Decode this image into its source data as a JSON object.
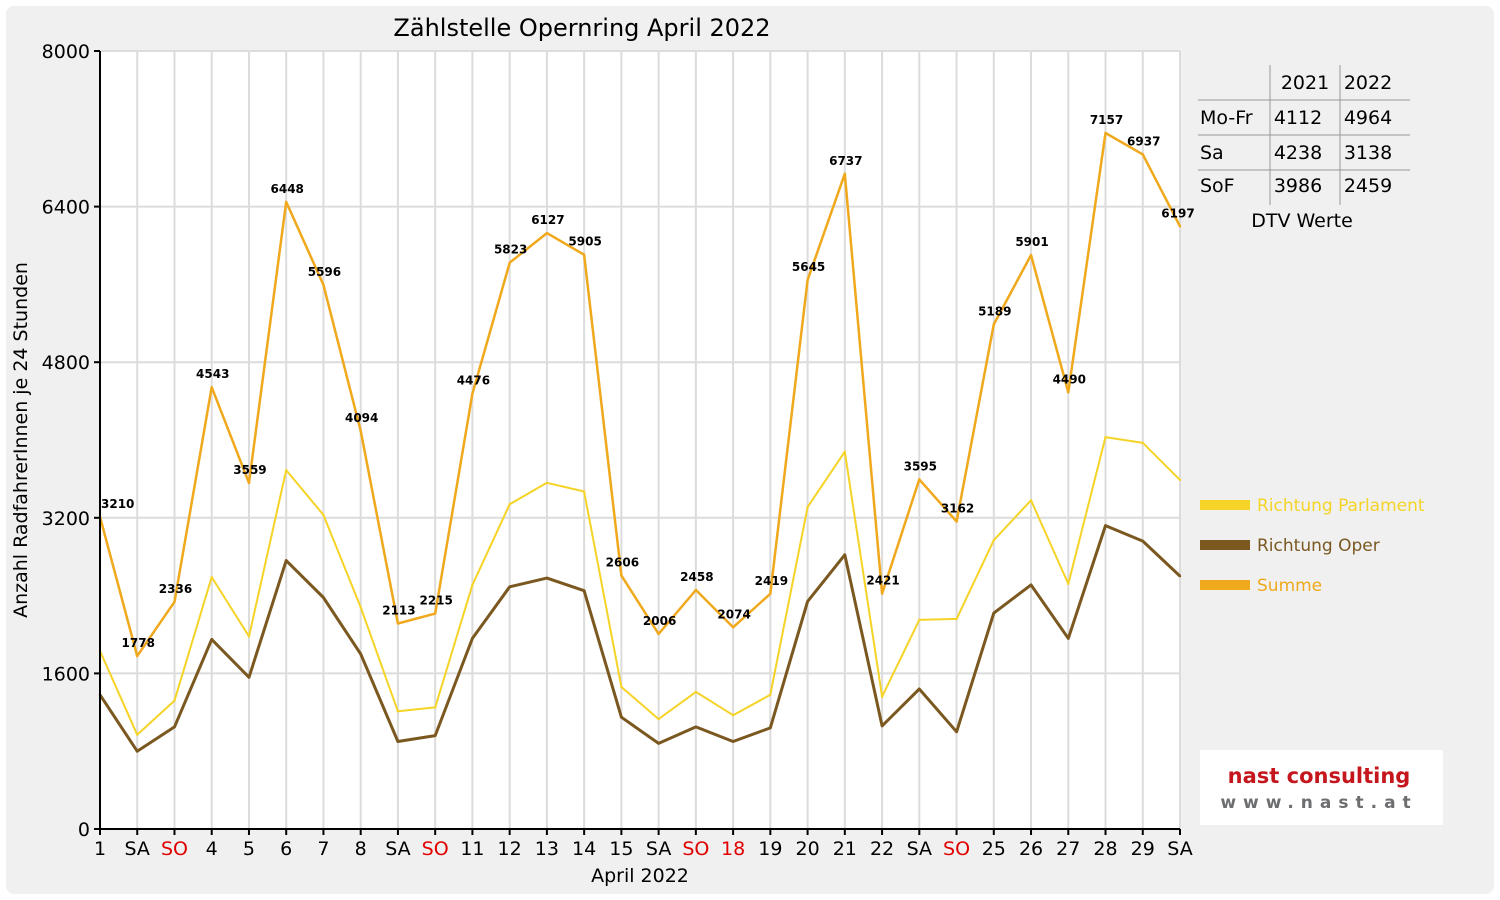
{
  "chart_data": {
    "type": "line",
    "title": "Zählstelle Opernring April 2022",
    "xlabel": "April 2022",
    "ylabel": "Anzahl RadfahrerInnen je 24 Stunden",
    "ylim": [
      0,
      8000
    ],
    "yticks": [
      "0",
      "1600",
      "3200",
      "4800",
      "6400",
      "8000"
    ],
    "grid": true,
    "legend_position": "right",
    "categories": [
      "1",
      "SA",
      "SO",
      "4",
      "5",
      "6",
      "7",
      "8",
      "SA",
      "SO",
      "11",
      "12",
      "13",
      "14",
      "15",
      "SA",
      "SO",
      "18",
      "19",
      "20",
      "21",
      "22",
      "SA",
      "SO",
      "25",
      "26",
      "27",
      "28",
      "29",
      "SA"
    ],
    "highlight_categories": [
      false,
      false,
      true,
      false,
      false,
      false,
      false,
      false,
      false,
      true,
      false,
      false,
      false,
      false,
      false,
      false,
      true,
      true,
      false,
      false,
      false,
      false,
      false,
      true,
      false,
      false,
      false,
      false,
      false,
      false
    ],
    "series": [
      {
        "name": "Richtung Parlament",
        "color": "#f5d327",
        "values": [
          1830,
          970,
          1320,
          2590,
          1980,
          3690,
          3230,
          2280,
          1210,
          1250,
          2510,
          3340,
          3560,
          3470,
          1460,
          1130,
          1410,
          1170,
          1380,
          3310,
          3880,
          1360,
          2150,
          2160,
          2970,
          3380,
          2520,
          4030,
          3970,
          3590
        ]
      },
      {
        "name": "Richtung Oper",
        "color": "#7a5820",
        "values": [
          1380,
          800,
          1050,
          1950,
          1560,
          2760,
          2380,
          1800,
          900,
          960,
          1960,
          2490,
          2580,
          2450,
          1150,
          880,
          1050,
          900,
          1040,
          2340,
          2820,
          1060,
          1440,
          1000,
          2220,
          2510,
          1960,
          3120,
          2960,
          2600
        ]
      },
      {
        "name": "Summe",
        "color": "#f0a81c",
        "values": [
          3210,
          1778,
          2336,
          4543,
          3559,
          6448,
          5596,
          4094,
          2113,
          2215,
          4476,
          5823,
          6127,
          5905,
          2606,
          2006,
          2458,
          2074,
          2419,
          5645,
          6737,
          2421,
          3595,
          3162,
          5189,
          5901,
          4490,
          7157,
          6937,
          6197
        ]
      }
    ],
    "data_labels": [
      "3210",
      "1778",
      "2336",
      "4543",
      "3559",
      "6448",
      "5596",
      "4094",
      "2113",
      "2215",
      "4476",
      "5823",
      "6127",
      "5905",
      "2606",
      "2006",
      "2458",
      "2074",
      "2419",
      "5645",
      "6737",
      "2421",
      "3595",
      "3162",
      "5189",
      "5901",
      "4490",
      "7157",
      "6937",
      "6197"
    ]
  },
  "dtv_table": {
    "headers": [
      "2021",
      "2022"
    ],
    "rows": [
      {
        "label": "Mo-Fr",
        "v2021": "4112",
        "v2022": "4964"
      },
      {
        "label": "Sa",
        "v2021": "4238",
        "v2022": "3138"
      },
      {
        "label": "SoF",
        "v2021": "3986",
        "v2022": "2459"
      }
    ],
    "caption": "DTV Werte"
  },
  "logo": {
    "line1": "nast consulting",
    "line2": "www.nast.at"
  },
  "colors": {
    "holiday_label": "#e00000",
    "gridline": "#dcdcdc",
    "logo_red": "#c4161c",
    "logo_gray": "#6d6e70"
  }
}
